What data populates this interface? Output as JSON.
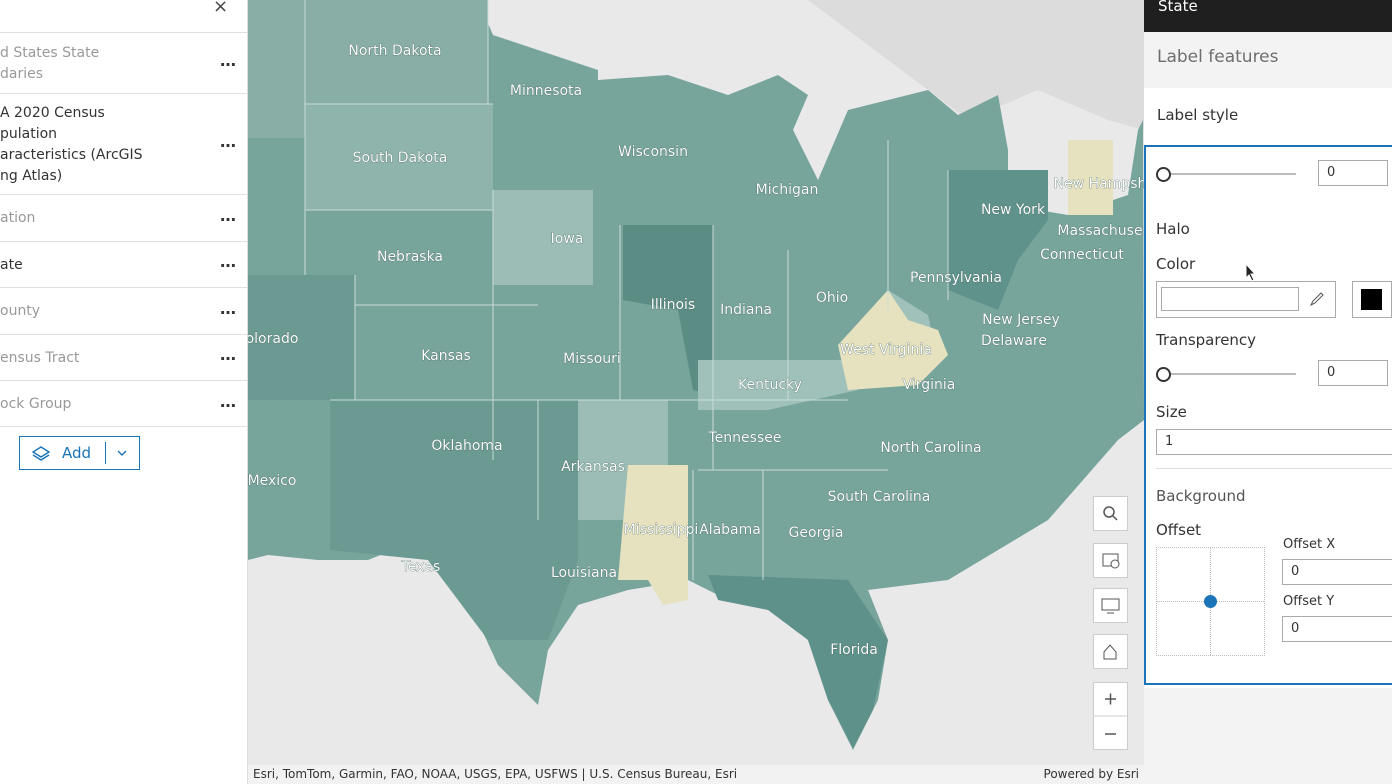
{
  "layers_panel": {
    "items": [
      {
        "lines": [
          "d States State",
          "daries"
        ]
      },
      {
        "lines": [
          "A 2020 Census",
          "pulation",
          "aracteristics (ArcGIS",
          "ng Atlas)"
        ]
      },
      {
        "lines": [
          "ation"
        ]
      },
      {
        "lines": [
          "ate"
        ]
      },
      {
        "lines": [
          "ounty"
        ]
      },
      {
        "lines": [
          "ensus Tract"
        ]
      },
      {
        "lines": [
          "ock Group"
        ]
      }
    ],
    "add_button": "Add"
  },
  "map": {
    "labels": [
      "North Dakota",
      "Minnesota",
      "South Dakota",
      "Wisconsin",
      "Michigan",
      "Iowa",
      "Nebraska",
      "Illinois",
      "Indiana",
      "Ohio",
      "Pennsylvania",
      "New York",
      "New Hampsh",
      "Massachuse",
      "Connecticut",
      "New Jersey",
      "Delaware",
      "West Virginia",
      "Virginia",
      "Kentucky",
      "Kansas",
      "Missouri",
      "olorado",
      "Tennessee",
      "North Carolina",
      "Oklahoma",
      "Arkansas",
      "Mexico",
      "South Carolina",
      "Mississippi",
      "Alabama",
      "Georgia",
      "Texas",
      "Louisiana",
      "Florida"
    ],
    "attribution": "Esri, TomTom, Garmin, FAO, NOAA, USGS, EPA, USFWS | U.S. Census Bureau, Esri",
    "powered_by": "Powered by Esri"
  },
  "properties_panel": {
    "header": "State",
    "section": "Label features",
    "card_title": "Label style",
    "top_transparency_value": 0,
    "halo": "Halo",
    "color": "Color",
    "transparency": "Transparency",
    "transparency_value": 0,
    "size": "Size",
    "size_value": 1,
    "background": "Background",
    "offset": "Offset",
    "offset_x": "Offset X",
    "offset_x_value": 0,
    "offset_y": "Offset Y",
    "offset_y_value": 0
  }
}
